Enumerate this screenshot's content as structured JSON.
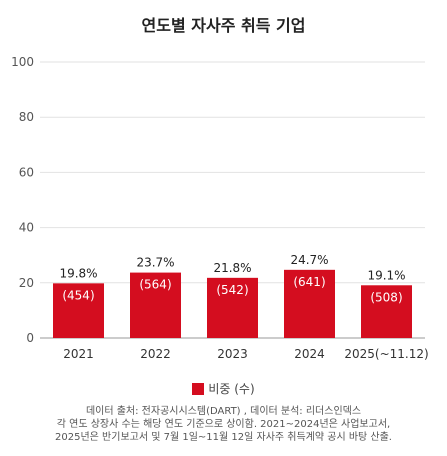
{
  "chart_data": {
    "type": "bar",
    "title": "연도별 자사주 취득 기업",
    "categories": [
      "2021",
      "2022",
      "2023",
      "2024",
      "2025(~11.12)"
    ],
    "series": [
      {
        "name": "비중 (수)",
        "values": [
          19.8,
          23.7,
          21.8,
          24.7,
          19.1
        ],
        "counts": [
          454,
          564,
          542,
          641,
          508
        ],
        "pct_labels": [
          "19.8%",
          "23.7%",
          "21.8%",
          "24.7%",
          "19.1%"
        ],
        "count_labels": [
          "(454)",
          "(564)",
          "(542)",
          "(641)",
          "(508)"
        ]
      }
    ],
    "yticks": [
      "0",
      "20",
      "40",
      "60",
      "80",
      "100"
    ],
    "ylim": [
      0,
      100
    ],
    "grid": true,
    "bar_color": "#d40d1f",
    "legend_position": "bottom"
  },
  "notes": [
    "데이터 출처: 전자공시시스템(DART) , 데이터 분석: 리더스인덱스",
    "각 연도 상장사 수는 해당 연도 기준으로 상이함. 2021~2024년은 사업보고서,",
    "2025년은 반기보고서 및 7월 1일~11월 12일 자사주 취득계약 공시 바탕 산출."
  ]
}
